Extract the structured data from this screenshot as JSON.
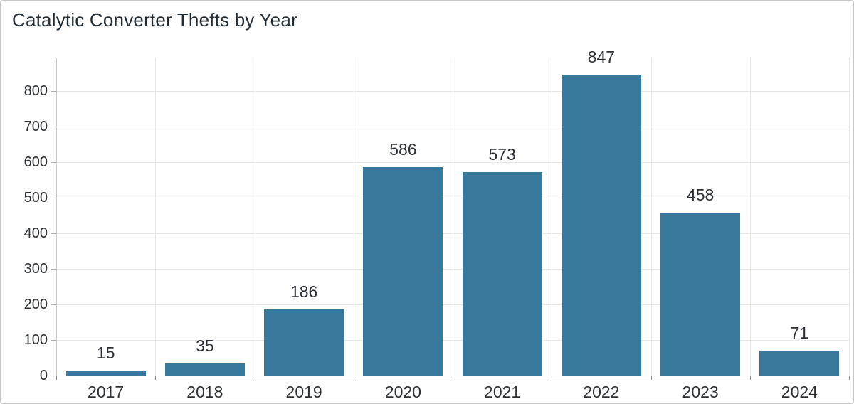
{
  "page": {
    "background": "#ffffff",
    "frame_border_color": "#c7c7c7"
  },
  "chart_data": {
    "type": "bar",
    "title": "Catalytic Converter Thefts by Year",
    "categories": [
      "2017",
      "2018",
      "2019",
      "2020",
      "2021",
      "2022",
      "2023",
      "2024"
    ],
    "values": [
      15,
      35,
      186,
      586,
      573,
      847,
      458,
      71
    ],
    "xlabel": "",
    "ylabel": "",
    "ylim": [
      0,
      894
    ],
    "yticks": [
      0,
      100,
      200,
      300,
      400,
      500,
      600,
      700,
      800
    ],
    "grid": true,
    "legend": "none",
    "value_labels_shown": true,
    "bar_color": "#37789B"
  },
  "colors": {
    "bar": "#37789B",
    "gridline": "#e6e6e8",
    "axis": "#c6c7c9",
    "tick": "#8f9193",
    "label_text": "#2e3134",
    "title_text": "#212b33"
  }
}
